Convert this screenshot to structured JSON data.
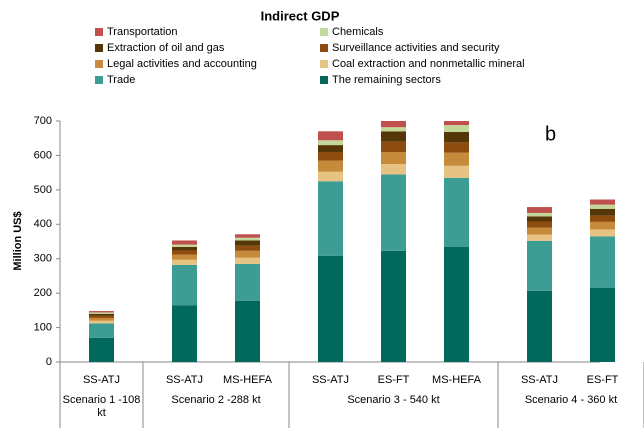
{
  "chart_data": {
    "type": "stacked_bar",
    "title": "Indirect GDP",
    "ylabel": "Million US$",
    "annotation": "b",
    "categories": [
      "SS-ATJ",
      "SS-ATJ",
      "MS-HEFA",
      "SS-ATJ",
      "ES-FT",
      "MS-HEFA",
      "SS-ATJ",
      "ES-FT"
    ],
    "groups": [
      {
        "label": "Scenario 1 -108 kt",
        "count": 1
      },
      {
        "label": "Scenario 2 -288 kt",
        "count": 2
      },
      {
        "label": "Scenario 3 - 540 kt",
        "count": 3
      },
      {
        "label": "Scenario 4 - 360 kt",
        "count": 2
      }
    ],
    "series": [
      {
        "name": "The remaining sectors",
        "color": "#00695c",
        "values": [
          70,
          165,
          178,
          308,
          323,
          335,
          207,
          215
        ]
      },
      {
        "name": "Trade",
        "color": "#3d9d94",
        "values": [
          42,
          117,
          107,
          217,
          222,
          200,
          145,
          150
        ]
      },
      {
        "name": "Coal extraction and nonmetallic mineral",
        "color": "#e6c383",
        "values": [
          8,
          15,
          18,
          28,
          30,
          35,
          18,
          20
        ]
      },
      {
        "name": "Legal activities and accounting",
        "color": "#c58a3a",
        "values": [
          8,
          15,
          20,
          32,
          35,
          38,
          20,
          22
        ]
      },
      {
        "name": "Surveillance activities and security",
        "color": "#8e4d0e",
        "values": [
          6,
          12,
          15,
          25,
          30,
          30,
          18,
          18
        ]
      },
      {
        "name": "Extraction of oil and gas",
        "color": "#553609",
        "values": [
          6,
          10,
          15,
          20,
          30,
          30,
          15,
          20
        ]
      },
      {
        "name": "Chemicals",
        "color": "#c4d79b",
        "values": [
          4,
          7,
          8,
          14,
          12,
          20,
          10,
          12
        ]
      },
      {
        "name": "Transportation",
        "color": "#c0504d",
        "values": [
          4,
          12,
          10,
          26,
          18,
          12,
          17,
          15
        ]
      }
    ],
    "ylim": [
      0,
      700
    ],
    "yticks": [
      0,
      100,
      200,
      300,
      400,
      500,
      600,
      700
    ],
    "grid": false
  }
}
